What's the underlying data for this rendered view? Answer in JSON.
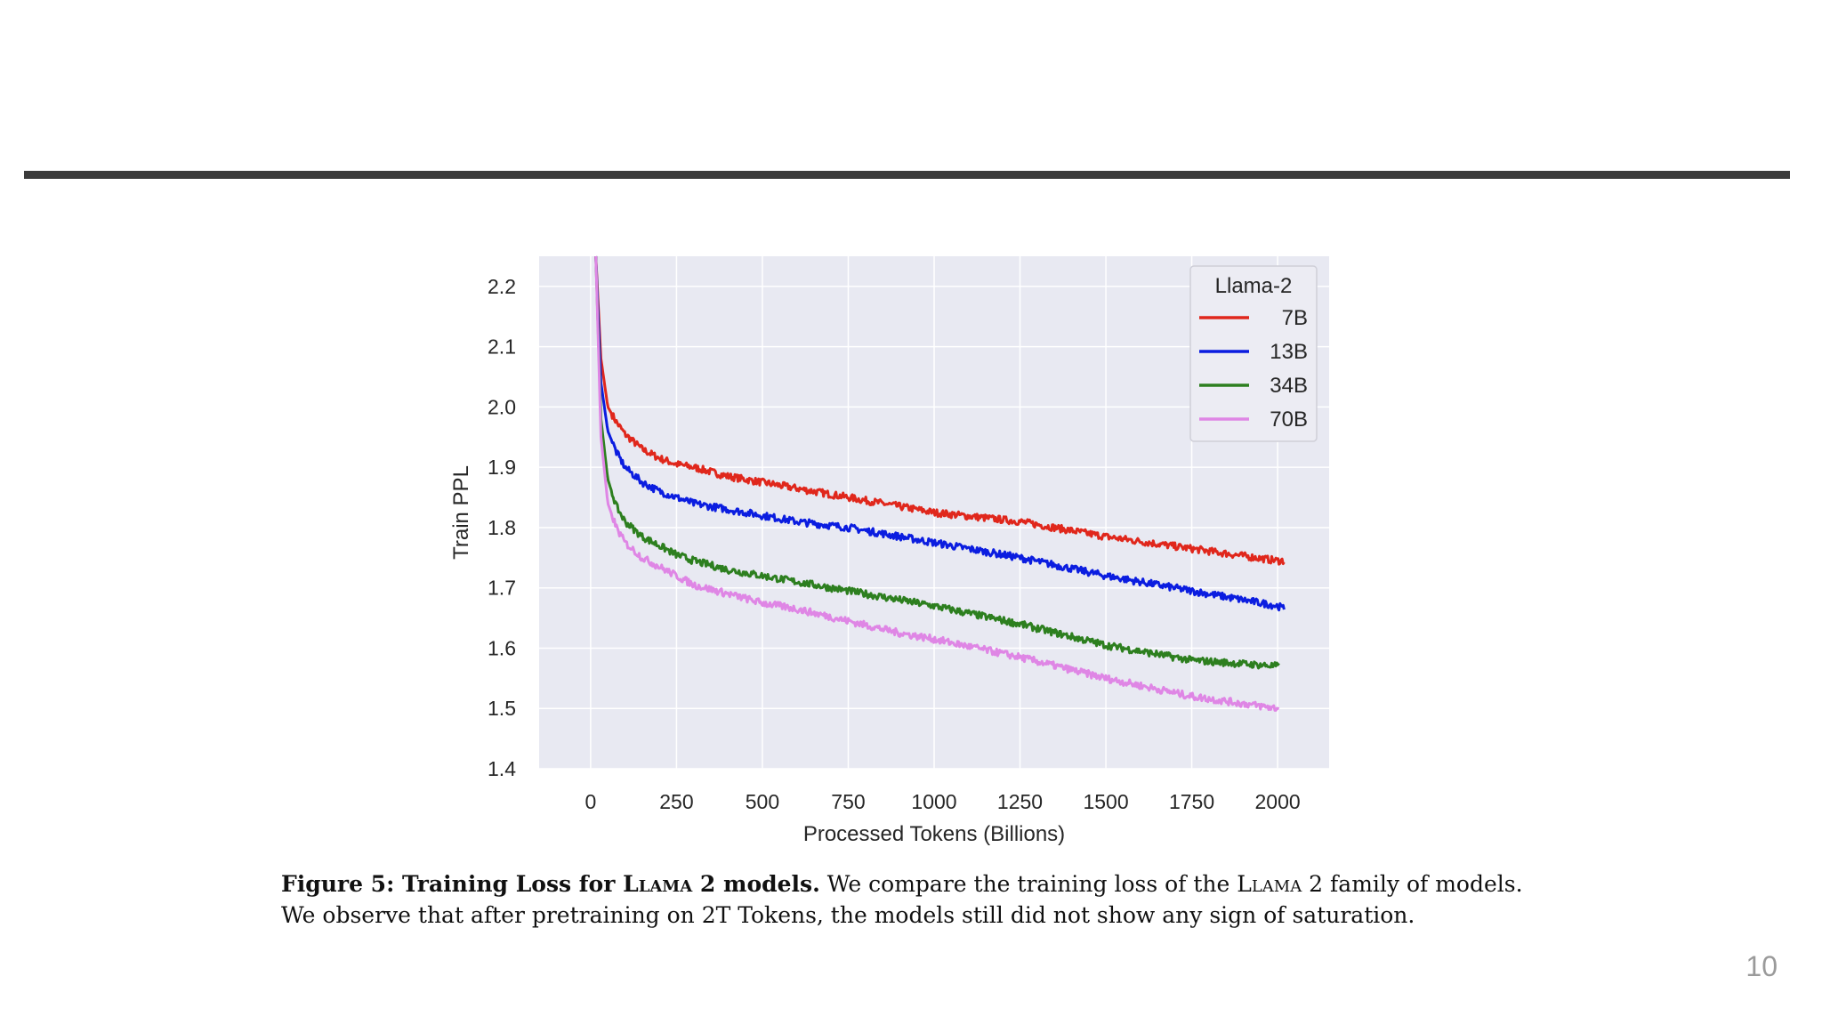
{
  "slide": {
    "page_number": "10"
  },
  "caption": {
    "line1_bold_a": "Figure 5: Training Loss for ",
    "line1_bold_sc": "Llama 2",
    "line1_bold_b": " models.",
    "line1_text_a": " We compare the training loss of the ",
    "line1_text_sc": "Llama 2",
    "line1_text_b": " family of models.",
    "line2": "We observe that after pretraining on 2T Tokens, the models still did not show any sign of saturation."
  },
  "colors": {
    "plot_bg": "#e8e9f2",
    "grid": "#ffffff",
    "7B": "#e0271c",
    "13B": "#0b1de0",
    "34B": "#2d7f1f",
    "70B": "#df86e5"
  },
  "chart_data": {
    "type": "line",
    "title": "",
    "xlabel": "Processed Tokens (Billions)",
    "ylabel": "Train PPL",
    "xlim": [
      -150,
      2150
    ],
    "ylim": [
      1.4,
      2.25
    ],
    "xticks": [
      0,
      250,
      500,
      750,
      1000,
      1250,
      1500,
      1750,
      2000
    ],
    "yticks": [
      1.4,
      1.5,
      1.6,
      1.7,
      1.8,
      1.9,
      2.0,
      2.1,
      2.2
    ],
    "grid": true,
    "legend": {
      "title": "Llama-2",
      "position": "top-right"
    },
    "series": [
      {
        "name": "7B",
        "x": [
          15,
          30,
          50,
          75,
          100,
          150,
          200,
          250,
          300,
          400,
          500,
          600,
          750,
          900,
          1000,
          1250,
          1500,
          1750,
          2000,
          2020
        ],
        "y": [
          2.25,
          2.08,
          2.0,
          1.975,
          1.955,
          1.93,
          1.915,
          1.905,
          1.9,
          1.885,
          1.875,
          1.865,
          1.85,
          1.835,
          1.825,
          1.81,
          1.785,
          1.765,
          1.745,
          1.745
        ]
      },
      {
        "name": "13B",
        "x": [
          15,
          30,
          50,
          75,
          100,
          150,
          200,
          250,
          300,
          400,
          500,
          600,
          750,
          900,
          1000,
          1250,
          1500,
          1750,
          2000,
          2020
        ],
        "y": [
          2.25,
          2.04,
          1.96,
          1.925,
          1.9,
          1.875,
          1.86,
          1.85,
          1.84,
          1.83,
          1.82,
          1.81,
          1.8,
          1.785,
          1.775,
          1.75,
          1.72,
          1.695,
          1.67,
          1.665
        ]
      },
      {
        "name": "34B",
        "x": [
          15,
          30,
          50,
          75,
          100,
          150,
          200,
          250,
          300,
          400,
          500,
          600,
          750,
          900,
          1000,
          1250,
          1500,
          1750,
          2000,
          2005
        ],
        "y": [
          2.25,
          1.98,
          1.88,
          1.835,
          1.81,
          1.785,
          1.77,
          1.755,
          1.745,
          1.73,
          1.72,
          1.71,
          1.695,
          1.68,
          1.67,
          1.64,
          1.605,
          1.58,
          1.57,
          1.57
        ]
      },
      {
        "name": "70B",
        "x": [
          15,
          30,
          50,
          75,
          100,
          150,
          200,
          250,
          300,
          400,
          500,
          600,
          750,
          900,
          1000,
          1250,
          1500,
          1750,
          2000,
          2005
        ],
        "y": [
          2.25,
          1.95,
          1.84,
          1.8,
          1.775,
          1.75,
          1.735,
          1.72,
          1.705,
          1.69,
          1.675,
          1.665,
          1.645,
          1.625,
          1.615,
          1.585,
          1.55,
          1.52,
          1.5,
          1.5
        ]
      }
    ]
  }
}
